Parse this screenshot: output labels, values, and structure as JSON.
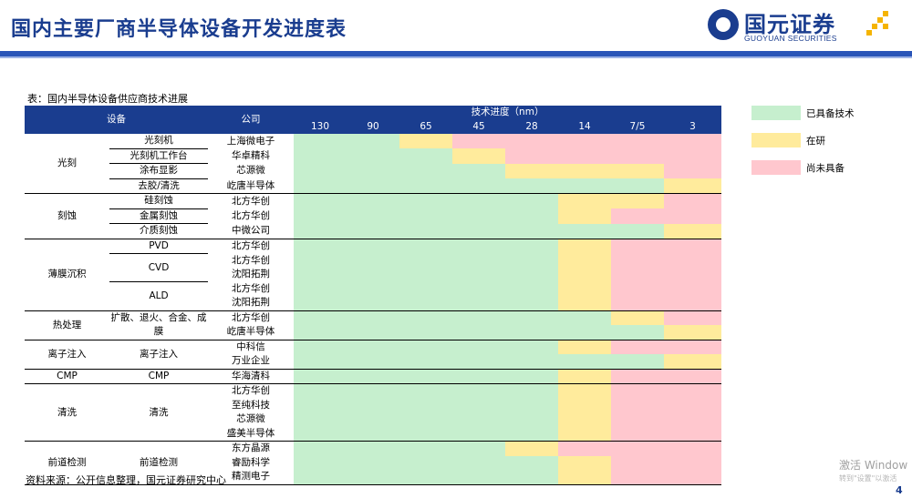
{
  "title": "国内主要厂商半导体设备开发进度表",
  "logo": {
    "cn": "国元证券",
    "en": "GUOYUAN SECURITIES"
  },
  "caption": "表：国内半导体设备供应商技术进展",
  "source": "资料来源：公开信息整理，国元证券研究中心",
  "table": {
    "headers": {
      "equipment": "设备",
      "company": "公司",
      "tech_progress": "技术进度（nm）",
      "nodes": [
        "130",
        "90",
        "65",
        "45",
        "28",
        "14",
        "7/5",
        "3"
      ]
    },
    "rows": [
      {
        "cat": "光刻",
        "cat_span": 4,
        "sub": "光刻机",
        "sub_span": 1,
        "company": "上海微电子",
        "status": [
          "g",
          "g",
          "y",
          "r",
          "r",
          "r",
          "r",
          "r"
        ]
      },
      {
        "sub": "光刻机工作台",
        "sub_span": 1,
        "company": "华卓精科",
        "status": [
          "g",
          "g",
          "g",
          "y",
          "r",
          "r",
          "r",
          "r"
        ]
      },
      {
        "sub": "涂布显影",
        "sub_span": 1,
        "company": "芯源微",
        "status": [
          "g",
          "g",
          "g",
          "g",
          "y",
          "y",
          "y",
          "r"
        ]
      },
      {
        "sub": "去胶/清洗",
        "sub_span": 1,
        "company": "屹唐半导体",
        "status": [
          "g",
          "g",
          "g",
          "g",
          "g",
          "g",
          "g",
          "y"
        ]
      },
      {
        "cat": "刻蚀",
        "cat_span": 3,
        "sub": "硅刻蚀",
        "sub_span": 1,
        "company": "北方华创",
        "status": [
          "g",
          "g",
          "g",
          "g",
          "g",
          "y",
          "y",
          "r"
        ]
      },
      {
        "sub": "金属刻蚀",
        "sub_span": 1,
        "company": "北方华创",
        "status": [
          "g",
          "g",
          "g",
          "g",
          "g",
          "y",
          "r",
          "r"
        ]
      },
      {
        "sub": "介质刻蚀",
        "sub_span": 1,
        "company": "中微公司",
        "status": [
          "g",
          "g",
          "g",
          "g",
          "g",
          "g",
          "g",
          "y"
        ]
      },
      {
        "cat": "薄膜沉积",
        "cat_span": 5,
        "sub": "PVD",
        "sub_span": 1,
        "company": "北方华创",
        "status": [
          "g",
          "g",
          "g",
          "g",
          "g",
          "y",
          "r",
          "r"
        ]
      },
      {
        "sub": "CVD",
        "sub_span": 2,
        "company": "北方华创",
        "status": [
          "g",
          "g",
          "g",
          "g",
          "g",
          "y",
          "r",
          "r"
        ]
      },
      {
        "company": "沈阳拓荆",
        "status": [
          "g",
          "g",
          "g",
          "g",
          "g",
          "y",
          "r",
          "r"
        ]
      },
      {
        "sub": "ALD",
        "sub_span": 2,
        "company": "北方华创",
        "status": [
          "g",
          "g",
          "g",
          "g",
          "g",
          "y",
          "r",
          "r"
        ]
      },
      {
        "company": "沈阳拓荆",
        "status": [
          "g",
          "g",
          "g",
          "g",
          "g",
          "y",
          "r",
          "r"
        ]
      },
      {
        "cat": "热处理",
        "cat_span": 2,
        "sub": "扩散、退火、合金、成膜",
        "sub_span": 2,
        "company": "北方华创",
        "status": [
          "g",
          "g",
          "g",
          "g",
          "g",
          "g",
          "y",
          "r"
        ]
      },
      {
        "company": "屹唐半导体",
        "status": [
          "g",
          "g",
          "g",
          "g",
          "g",
          "g",
          "g",
          "y"
        ]
      },
      {
        "cat": "离子注入",
        "cat_span": 2,
        "sub": "离子注入",
        "sub_span": 2,
        "company": "中科信",
        "status": [
          "g",
          "g",
          "g",
          "g",
          "g",
          "y",
          "r",
          "r"
        ]
      },
      {
        "company": "万业企业",
        "status": [
          "g",
          "g",
          "g",
          "g",
          "g",
          "g",
          "g",
          "y"
        ]
      },
      {
        "cat": "CMP",
        "cat_span": 1,
        "sub": "CMP",
        "sub_span": 1,
        "company": "华海清科",
        "status": [
          "g",
          "g",
          "g",
          "g",
          "g",
          "y",
          "r",
          "r"
        ]
      },
      {
        "cat": "清洗",
        "cat_span": 4,
        "sub": "清洗",
        "sub_span": 4,
        "company": "北方华创",
        "status": [
          "g",
          "g",
          "g",
          "g",
          "g",
          "y",
          "r",
          "r"
        ]
      },
      {
        "company": "至纯科技",
        "status": [
          "g",
          "g",
          "g",
          "g",
          "g",
          "y",
          "r",
          "r"
        ]
      },
      {
        "company": "芯源微",
        "status": [
          "g",
          "g",
          "g",
          "g",
          "g",
          "y",
          "r",
          "r"
        ]
      },
      {
        "company": "盛美半导体",
        "status": [
          "g",
          "g",
          "g",
          "g",
          "g",
          "y",
          "r",
          "r"
        ]
      },
      {
        "cat": "前道检测",
        "cat_span": 3,
        "sub": "前道检测",
        "sub_span": 3,
        "company": "东方晶源",
        "status": [
          "g",
          "g",
          "g",
          "g",
          "y",
          "r",
          "r",
          "r"
        ]
      },
      {
        "company": "睿励科学",
        "status": [
          "g",
          "g",
          "g",
          "g",
          "g",
          "y",
          "r",
          "r"
        ]
      },
      {
        "company": "精测电子",
        "status": [
          "g",
          "g",
          "g",
          "g",
          "g",
          "y",
          "r",
          "r"
        ]
      }
    ]
  },
  "legend": [
    {
      "label": "已具备技术",
      "color": "#c6efce"
    },
    {
      "label": "在研",
      "color": "#ffeb9c"
    },
    {
      "label": "尚未具备",
      "color": "#ffc7ce"
    }
  ],
  "colors": {
    "brand": "#1a3d8f",
    "green": "#c6efce",
    "yellow": "#ffeb9c",
    "red": "#ffc7ce"
  },
  "watermark": {
    "line1": "激活 Window",
    "line2": "转到\"设置\"以激活"
  },
  "page_number": "4"
}
